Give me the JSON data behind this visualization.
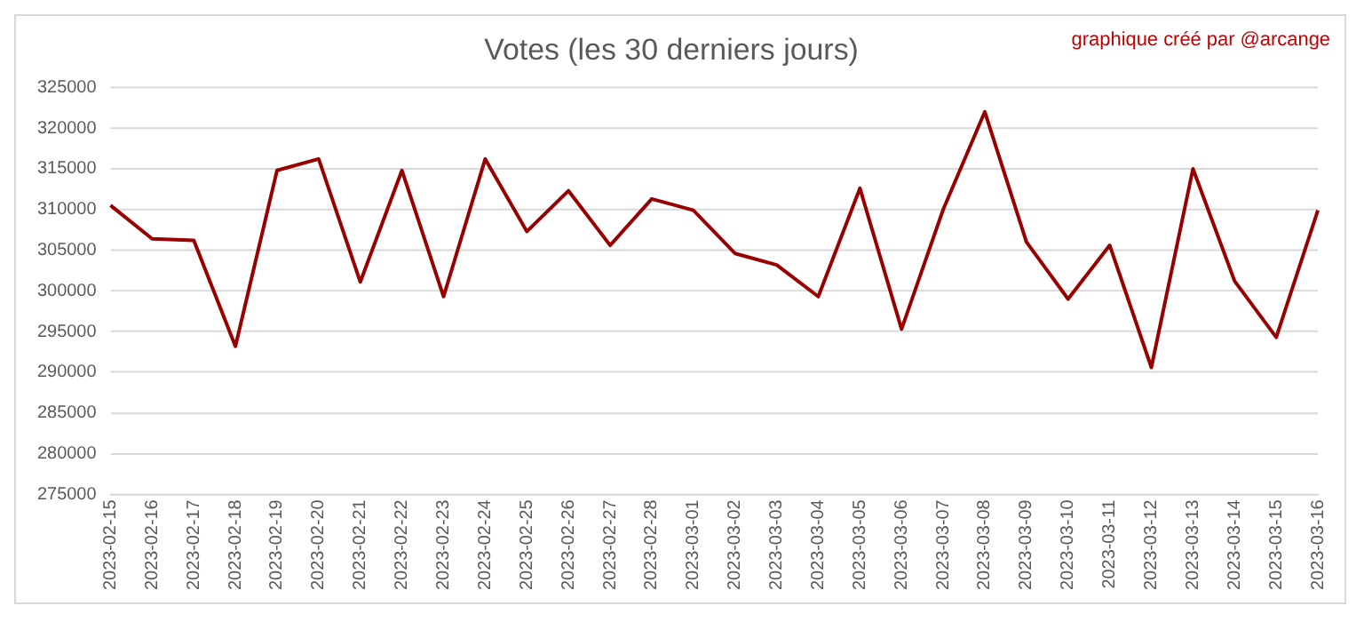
{
  "chart_data": {
    "type": "line",
    "title": "Votes (les 30 derniers jours)",
    "annotations": [
      "graphique créé par @arcange"
    ],
    "categories": [
      "2023-02-15",
      "2023-02-16",
      "2023-02-17",
      "2023-02-18",
      "2023-02-19",
      "2023-02-20",
      "2023-02-21",
      "2023-02-22",
      "2023-02-23",
      "2023-02-24",
      "2023-02-25",
      "2023-02-26",
      "2023-02-27",
      "2023-02-28",
      "2023-03-01",
      "2023-03-02",
      "2023-03-03",
      "2023-03-04",
      "2023-03-05",
      "2023-03-06",
      "2023-03-07",
      "2023-03-08",
      "2023-03-09",
      "2023-03-10",
      "2023-03-11",
      "2023-03-12",
      "2023-03-13",
      "2023-03-14",
      "2023-03-15",
      "2023-03-16"
    ],
    "series": [
      {
        "color": "#990000",
        "values": [
          310500,
          306400,
          306200,
          293200,
          314800,
          316200,
          301100,
          314800,
          299300,
          316200,
          307300,
          312300,
          305600,
          311300,
          309900,
          304600,
          303200,
          299300,
          312600,
          295300,
          310000,
          322000,
          306000,
          299000,
          305600,
          290600,
          315000,
          301200,
          294300,
          309900
        ]
      }
    ],
    "ylim": [
      275000,
      325000
    ],
    "yticks": [
      275000,
      280000,
      285000,
      290000,
      295000,
      300000,
      305000,
      310000,
      315000,
      320000,
      325000
    ],
    "grid": "y",
    "legend": false,
    "marker": "none",
    "line_style": "solid"
  }
}
